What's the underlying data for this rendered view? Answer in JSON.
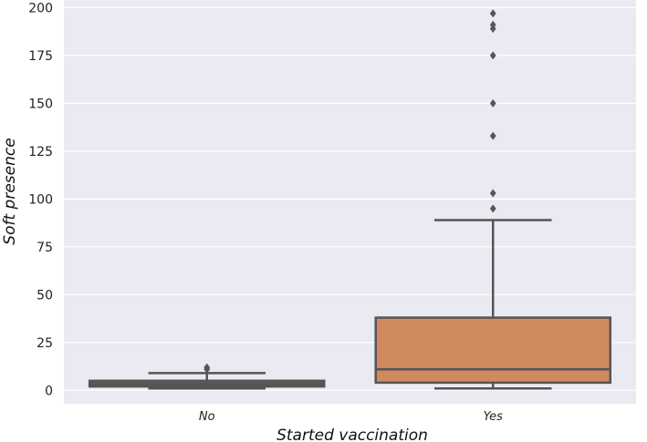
{
  "chart_data": {
    "type": "box",
    "xlabel": "Started vaccination",
    "ylabel": "Soft presence",
    "ylim": [
      -7,
      204
    ],
    "yticks": [
      0,
      25,
      50,
      75,
      100,
      125,
      150,
      175,
      200
    ],
    "ytick_labels": [
      "0",
      "25",
      "50",
      "75",
      "100",
      "125",
      "150",
      "175",
      "200"
    ],
    "categories": [
      "No",
      "Yes"
    ],
    "grid": true,
    "colors": {
      "background": "#eaeaf2",
      "grid": "#ffffff",
      "line": "#555555",
      "box_no": "#5a5a5a",
      "box_yes": "#d08a5e"
    },
    "boxes": [
      {
        "category": "No",
        "whisker_low": 1,
        "q1": 2,
        "median": 3,
        "q3": 5,
        "whisker_high": 9,
        "outliers": [
          11,
          12
        ]
      },
      {
        "category": "Yes",
        "whisker_low": 1,
        "q1": 4,
        "median": 11,
        "q3": 38,
        "whisker_high": 89,
        "outliers": [
          95,
          103,
          133,
          150,
          175,
          189,
          191,
          197
        ]
      }
    ]
  }
}
